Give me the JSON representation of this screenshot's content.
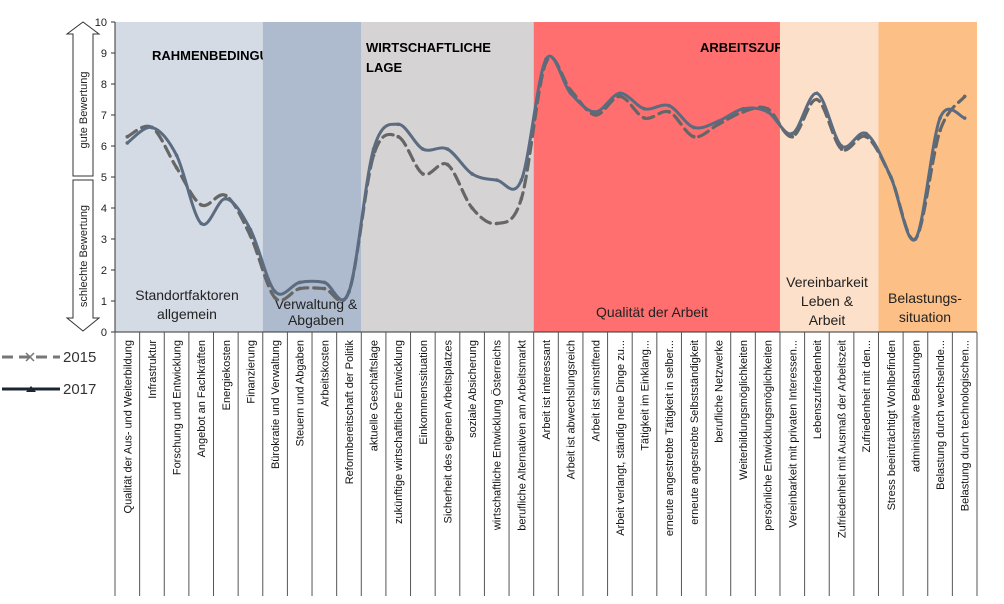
{
  "chart_data": {
    "type": "line",
    "ylim": [
      0,
      10
    ],
    "yticks": [
      "0",
      "1",
      "2",
      "3",
      "4",
      "5",
      "6",
      "7",
      "8",
      "9",
      "10"
    ],
    "axis_annotations": {
      "upper": "gute Bewertung",
      "lower": "schlechte Bewertung"
    },
    "categories": [
      "Qualität der Aus- und Weiterbildung",
      "Infrastruktur",
      "Forschung und Entwicklung",
      "Angebot an Fachkräften",
      "Energiekosten",
      "Finanzierung",
      "Bürokratie und Verwaltung",
      "Steuern und Abgaben",
      "Arbeitskosten",
      "Reformbereitschaft der Politik",
      "aktuelle Geschäftslage",
      "zukünftige wirtschaftliche Entwicklung",
      "Einkommenssituation",
      "Sicherheit des eigenen Arbeitsplatzes",
      "soziale Absicherung",
      "wirtschaftliche Entwicklung Österreichs",
      "berufliche Alternativen am Arbeitsmarkt",
      "Arbeit ist interessant",
      "Arbeit ist abwechslungsreich",
      "Arbeit ist sinnstiftend",
      "Arbeit verlangt, ständig neue Dinge zu...",
      "Tätigkeit im Einklang...",
      "erneute angestrebte Tätigkeit in selber...",
      "erneute angestrebte Selbstständigkeit",
      "berufliche Netzwerke",
      "Weiterbildungsmöglichkeiten",
      "persönliche Entwicklungsmöglichkeiten",
      "Vereinbarkeit mit privaten Interessen...",
      "Lebenszufriedenheit",
      "Zufriedenheit mit Ausmaß der Arbeitszeit",
      "Zufriedenheit mit den...",
      "Stress beeinträchtigt Wohlbefinden",
      "administrative Belastungen",
      "Belastung durch wechselnde...",
      "Belastung durch technologischen..."
    ],
    "series": [
      {
        "name": "2015",
        "style": "dashed",
        "color": "#666666",
        "values": [
          6.3,
          6.6,
          5.3,
          4.1,
          4.4,
          3.1,
          1.1,
          1.4,
          1.4,
          1.3,
          5.7,
          6.3,
          5.1,
          5.4,
          4.0,
          3.5,
          4.3,
          8.7,
          7.8,
          7.0,
          7.6,
          6.9,
          7.1,
          6.3,
          6.7,
          7.1,
          7.2,
          6.3,
          7.5,
          5.9,
          6.3,
          5.0,
          3.0,
          6.5,
          7.6
        ]
      },
      {
        "name": "2017",
        "style": "solid",
        "color": "#5b6b80",
        "values": [
          6.1,
          6.6,
          5.7,
          3.5,
          4.3,
          3.3,
          1.3,
          1.6,
          1.6,
          1.3,
          5.9,
          6.7,
          5.9,
          5.9,
          5.1,
          4.9,
          4.9,
          8.8,
          7.7,
          7.1,
          7.7,
          7.2,
          7.3,
          6.6,
          6.8,
          7.2,
          7.1,
          6.4,
          7.7,
          6.0,
          6.4,
          5.0,
          3.0,
          6.9,
          6.9
        ]
      }
    ],
    "groups": [
      {
        "heading": "RAHMENBEDINGUNGEN",
        "label": "Standortfaktoren allgemein",
        "start": 0,
        "end": 5,
        "color": "#d5dbe5"
      },
      {
        "heading": "",
        "label": "Verwaltung & Abgaben",
        "start": 6,
        "end": 9,
        "color": "#aebacd"
      },
      {
        "heading": "WIRTSCHAFTLICHE LAGE",
        "label": "",
        "start": 10,
        "end": 16,
        "color": "#d5d3d3"
      },
      {
        "heading": "ARBEITSZUFRIEDENHEIT",
        "label": "Qualität der Arbeit",
        "start": 17,
        "end": 26,
        "color": "#ff6f6f"
      },
      {
        "heading": "",
        "label": "Vereinbarkeit Leben & Arbeit",
        "start": 27,
        "end": 30,
        "color": "#fde0c9"
      },
      {
        "heading": "",
        "label": "Belastungs-situation",
        "start": 31,
        "end": 34,
        "color": "#fcc087"
      }
    ],
    "legend": {
      "position": "left",
      "entries": [
        "2015",
        "2017"
      ]
    }
  }
}
